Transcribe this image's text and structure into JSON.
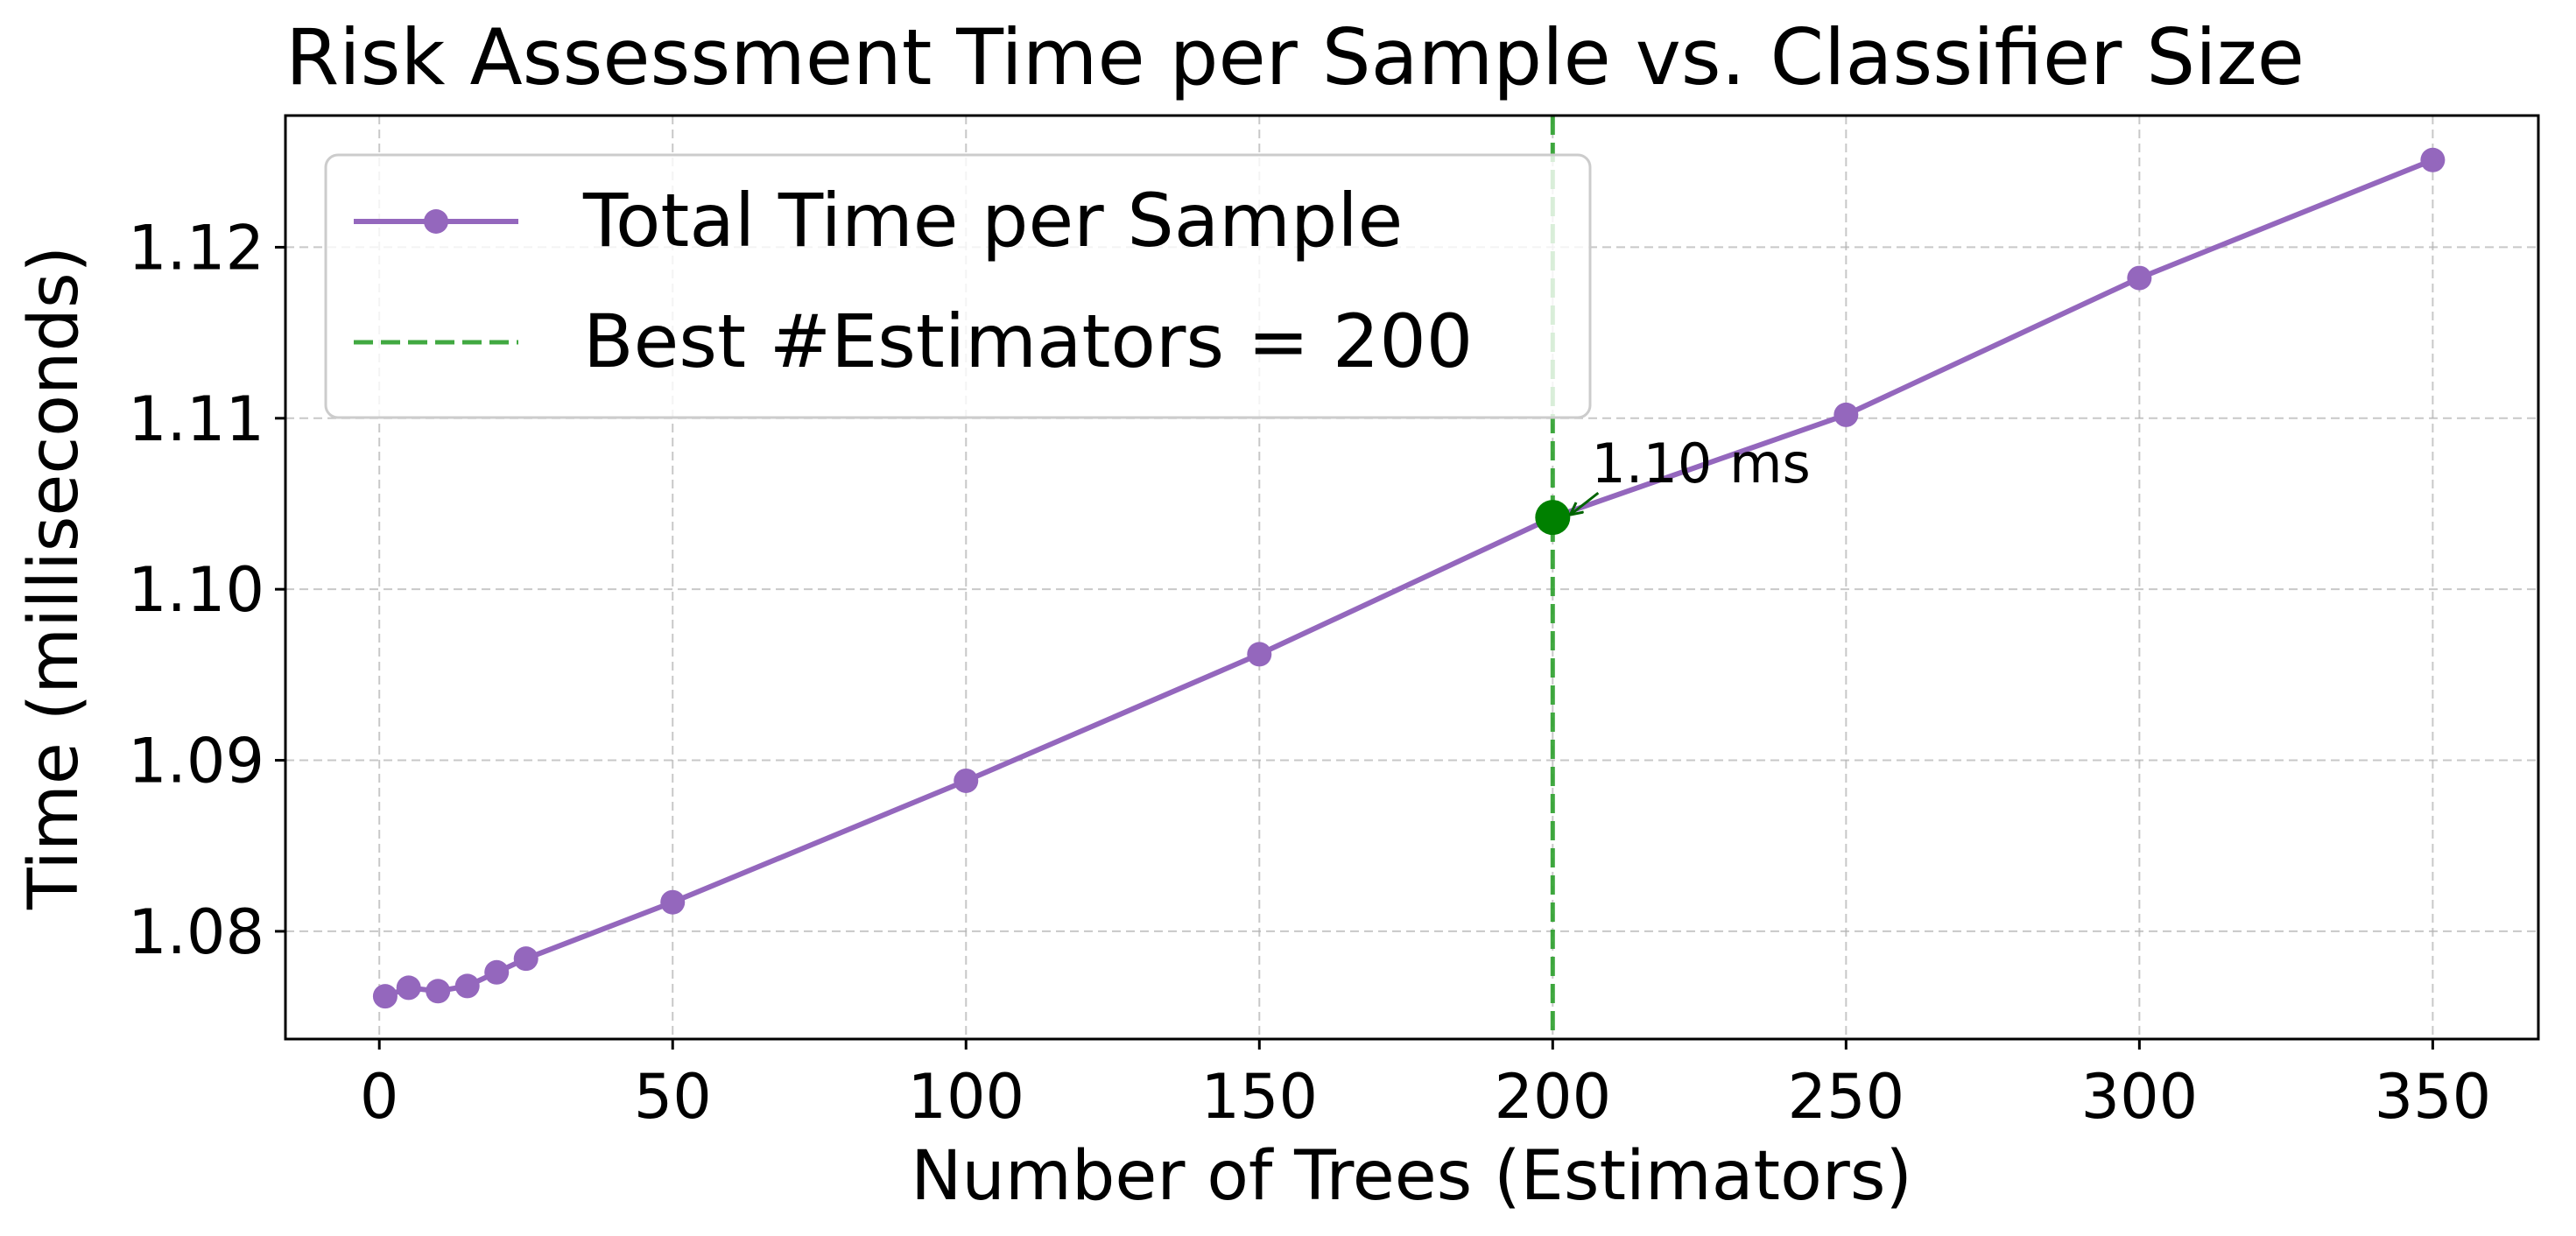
{
  "chart_data": {
    "type": "line",
    "title": "Risk Assessment Time per Sample vs. Classifier Size",
    "xlabel": "Number of Trees (Estimators)",
    "ylabel": "Time (milliseconds)",
    "xlim": [
      -16,
      368
    ],
    "ylim": [
      1.0737,
      1.1277
    ],
    "x_ticks": [
      0,
      50,
      100,
      150,
      200,
      250,
      300,
      350
    ],
    "y_ticks": [
      1.08,
      1.09,
      1.1,
      1.11,
      1.12
    ],
    "x_tick_labels": [
      "0",
      "50",
      "100",
      "150",
      "200",
      "250",
      "300",
      "350"
    ],
    "y_tick_labels": [
      "1.08",
      "1.09",
      "1.10",
      "1.11",
      "1.12"
    ],
    "grid": true,
    "legend_position": "top-left",
    "series": [
      {
        "name": "Total Time per Sample",
        "color": "#9467bd",
        "marker": "circle",
        "x": [
          1,
          5,
          10,
          15,
          20,
          25,
          50,
          100,
          150,
          200,
          250,
          300,
          350
        ],
        "y": [
          1.0762,
          1.0767,
          1.0765,
          1.0768,
          1.0776,
          1.0784,
          1.0817,
          1.0888,
          1.0962,
          1.1042,
          1.1102,
          1.1182,
          1.1251
        ]
      }
    ],
    "reference_line": {
      "name": "Best #Estimators = 200",
      "x": 200,
      "color": "#2ca02c",
      "style": "dashed"
    },
    "highlight_point": {
      "x": 200,
      "y": 1.1042,
      "color": "#008000"
    },
    "annotation": {
      "text": "1.10 ms",
      "arrow_to_x": 200,
      "arrow_to_y": 1.1042,
      "color": "#006400"
    }
  }
}
